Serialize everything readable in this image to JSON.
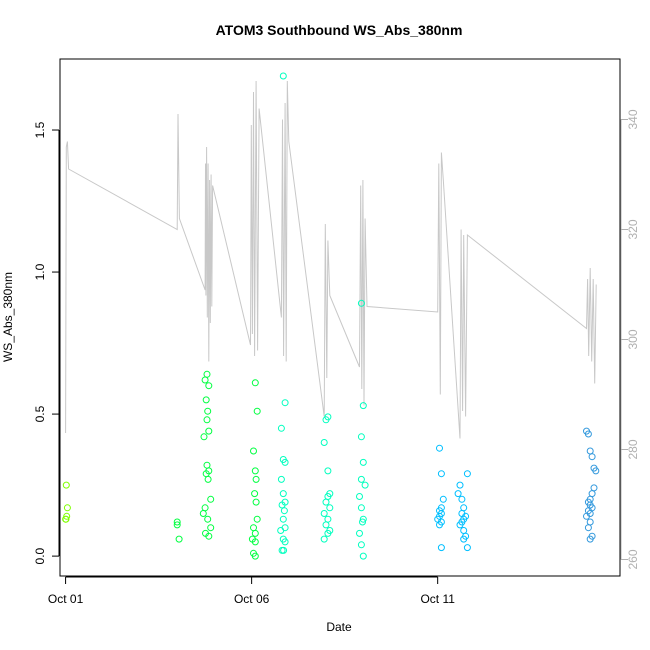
{
  "chart_data": {
    "type": "scatter",
    "title": "ATOM3 Southbound WS_Abs_380nm",
    "xlabel": "Date",
    "ylabel": "WS_Abs_380nm",
    "xlim": [
      -0.15,
      14.9
    ],
    "ylim": [
      -0.07,
      1.75
    ],
    "y2lim": [
      257,
      351
    ],
    "x_ticks": [
      {
        "x": 0,
        "label": "Oct 01"
      },
      {
        "x": 5,
        "label": "Oct 06"
      },
      {
        "x": 10,
        "label": "Oct 11"
      }
    ],
    "y_ticks": [
      {
        "y": 0.0,
        "label": "0.0"
      },
      {
        "y": 0.5,
        "label": "0.5"
      },
      {
        "y": 1.0,
        "label": "1.0"
      },
      {
        "y": 1.5,
        "label": "1.5"
      }
    ],
    "y2_ticks": [
      {
        "y": 260,
        "label": "260"
      },
      {
        "y": 280,
        "label": "280"
      },
      {
        "y": 300,
        "label": "300"
      },
      {
        "y": 320,
        "label": "320"
      },
      {
        "y": 340,
        "label": "340"
      }
    ],
    "point_color_scale": [
      "#7fff00",
      "#00ff40",
      "#00ffbf",
      "#00bfff",
      "#3399dd"
    ],
    "secondary_line_color": "#c8c8c8",
    "points": [
      {
        "x": 0.02,
        "y": 0.25
      },
      {
        "x": 0.05,
        "y": 0.17
      },
      {
        "x": 0.0,
        "y": 0.13
      },
      {
        "x": 0.03,
        "y": 0.14
      },
      {
        "x": 0.01,
        "y": 0.13
      },
      {
        "x": 3.0,
        "y": 0.12
      },
      {
        "x": 3.0,
        "y": 0.11
      },
      {
        "x": 3.05,
        "y": 0.06
      },
      {
        "x": 3.75,
        "y": 0.62
      },
      {
        "x": 3.8,
        "y": 0.64
      },
      {
        "x": 3.85,
        "y": 0.6
      },
      {
        "x": 3.78,
        "y": 0.55
      },
      {
        "x": 3.82,
        "y": 0.51
      },
      {
        "x": 3.8,
        "y": 0.48
      },
      {
        "x": 3.85,
        "y": 0.44
      },
      {
        "x": 3.72,
        "y": 0.42
      },
      {
        "x": 3.8,
        "y": 0.32
      },
      {
        "x": 3.85,
        "y": 0.3
      },
      {
        "x": 3.78,
        "y": 0.29
      },
      {
        "x": 3.83,
        "y": 0.27
      },
      {
        "x": 3.9,
        "y": 0.2
      },
      {
        "x": 3.75,
        "y": 0.17
      },
      {
        "x": 3.7,
        "y": 0.15
      },
      {
        "x": 3.82,
        "y": 0.13
      },
      {
        "x": 3.9,
        "y": 0.1
      },
      {
        "x": 3.85,
        "y": 0.07
      },
      {
        "x": 3.76,
        "y": 0.08
      },
      {
        "x": 5.1,
        "y": 0.61
      },
      {
        "x": 5.15,
        "y": 0.51
      },
      {
        "x": 5.05,
        "y": 0.37
      },
      {
        "x": 5.1,
        "y": 0.3
      },
      {
        "x": 5.12,
        "y": 0.27
      },
      {
        "x": 5.08,
        "y": 0.22
      },
      {
        "x": 5.12,
        "y": 0.19
      },
      {
        "x": 5.15,
        "y": 0.13
      },
      {
        "x": 5.05,
        "y": 0.1
      },
      {
        "x": 5.1,
        "y": 0.08
      },
      {
        "x": 5.02,
        "y": 0.06
      },
      {
        "x": 5.1,
        "y": 0.05
      },
      {
        "x": 5.05,
        "y": 0.01
      },
      {
        "x": 5.1,
        "y": 0.0
      },
      {
        "x": 5.85,
        "y": 1.69
      },
      {
        "x": 5.9,
        "y": 0.54
      },
      {
        "x": 5.8,
        "y": 0.45
      },
      {
        "x": 5.85,
        "y": 0.34
      },
      {
        "x": 5.9,
        "y": 0.33
      },
      {
        "x": 5.8,
        "y": 0.27
      },
      {
        "x": 5.85,
        "y": 0.22
      },
      {
        "x": 5.9,
        "y": 0.19
      },
      {
        "x": 5.82,
        "y": 0.18
      },
      {
        "x": 5.88,
        "y": 0.16
      },
      {
        "x": 5.85,
        "y": 0.13
      },
      {
        "x": 5.9,
        "y": 0.1
      },
      {
        "x": 5.78,
        "y": 0.09
      },
      {
        "x": 5.85,
        "y": 0.06
      },
      {
        "x": 5.9,
        "y": 0.05
      },
      {
        "x": 5.82,
        "y": 0.02
      },
      {
        "x": 5.86,
        "y": 0.02
      },
      {
        "x": 7.05,
        "y": 0.49
      },
      {
        "x": 7.0,
        "y": 0.48
      },
      {
        "x": 6.95,
        "y": 0.4
      },
      {
        "x": 7.05,
        "y": 0.3
      },
      {
        "x": 7.1,
        "y": 0.22
      },
      {
        "x": 7.05,
        "y": 0.21
      },
      {
        "x": 7.0,
        "y": 0.19
      },
      {
        "x": 7.1,
        "y": 0.17
      },
      {
        "x": 6.95,
        "y": 0.15
      },
      {
        "x": 7.05,
        "y": 0.13
      },
      {
        "x": 7.0,
        "y": 0.11
      },
      {
        "x": 7.1,
        "y": 0.09
      },
      {
        "x": 7.05,
        "y": 0.08
      },
      {
        "x": 6.95,
        "y": 0.06
      },
      {
        "x": 7.95,
        "y": 0.89
      },
      {
        "x": 8.0,
        "y": 0.53
      },
      {
        "x": 7.95,
        "y": 0.42
      },
      {
        "x": 8.0,
        "y": 0.33
      },
      {
        "x": 7.95,
        "y": 0.27
      },
      {
        "x": 8.05,
        "y": 0.25
      },
      {
        "x": 7.9,
        "y": 0.21
      },
      {
        "x": 7.95,
        "y": 0.17
      },
      {
        "x": 8.0,
        "y": 0.13
      },
      {
        "x": 7.98,
        "y": 0.12
      },
      {
        "x": 7.9,
        "y": 0.08
      },
      {
        "x": 7.95,
        "y": 0.04
      },
      {
        "x": 8.0,
        "y": 0.0
      },
      {
        "x": 10.05,
        "y": 0.38
      },
      {
        "x": 10.1,
        "y": 0.29
      },
      {
        "x": 10.15,
        "y": 0.2
      },
      {
        "x": 10.1,
        "y": 0.17
      },
      {
        "x": 10.05,
        "y": 0.16
      },
      {
        "x": 10.1,
        "y": 0.15
      },
      {
        "x": 10.05,
        "y": 0.14
      },
      {
        "x": 10.0,
        "y": 0.13
      },
      {
        "x": 10.1,
        "y": 0.12
      },
      {
        "x": 10.05,
        "y": 0.11
      },
      {
        "x": 10.1,
        "y": 0.03
      },
      {
        "x": 10.8,
        "y": 0.29
      },
      {
        "x": 10.6,
        "y": 0.25
      },
      {
        "x": 10.55,
        "y": 0.22
      },
      {
        "x": 10.65,
        "y": 0.2
      },
      {
        "x": 10.7,
        "y": 0.17
      },
      {
        "x": 10.65,
        "y": 0.15
      },
      {
        "x": 10.75,
        "y": 0.14
      },
      {
        "x": 10.7,
        "y": 0.13
      },
      {
        "x": 10.65,
        "y": 0.12
      },
      {
        "x": 10.6,
        "y": 0.11
      },
      {
        "x": 10.7,
        "y": 0.09
      },
      {
        "x": 10.75,
        "y": 0.07
      },
      {
        "x": 10.7,
        "y": 0.06
      },
      {
        "x": 10.8,
        "y": 0.03
      },
      {
        "x": 14.0,
        "y": 0.44
      },
      {
        "x": 14.05,
        "y": 0.43
      },
      {
        "x": 14.1,
        "y": 0.37
      },
      {
        "x": 14.15,
        "y": 0.35
      },
      {
        "x": 14.2,
        "y": 0.31
      },
      {
        "x": 14.25,
        "y": 0.3
      },
      {
        "x": 14.2,
        "y": 0.24
      },
      {
        "x": 14.15,
        "y": 0.22
      },
      {
        "x": 14.1,
        "y": 0.2
      },
      {
        "x": 14.05,
        "y": 0.19
      },
      {
        "x": 14.1,
        "y": 0.18
      },
      {
        "x": 14.15,
        "y": 0.17
      },
      {
        "x": 14.05,
        "y": 0.16
      },
      {
        "x": 14.1,
        "y": 0.15
      },
      {
        "x": 14.0,
        "y": 0.14
      },
      {
        "x": 14.1,
        "y": 0.12
      },
      {
        "x": 14.05,
        "y": 0.1
      },
      {
        "x": 14.15,
        "y": 0.07
      },
      {
        "x": 14.1,
        "y": 0.06
      }
    ],
    "secondary_line": [
      [
        0.0,
        283
      ],
      [
        0.02,
        335
      ],
      [
        0.05,
        336
      ],
      [
        0.08,
        331
      ],
      [
        3.0,
        320
      ],
      [
        3.02,
        341
      ],
      [
        3.06,
        322
      ],
      [
        3.75,
        309
      ],
      [
        3.76,
        332
      ],
      [
        3.77,
        308
      ],
      [
        3.79,
        335
      ],
      [
        3.81,
        304
      ],
      [
        3.83,
        332
      ],
      [
        3.85,
        296
      ],
      [
        3.87,
        329
      ],
      [
        3.89,
        303
      ],
      [
        3.91,
        330
      ],
      [
        3.93,
        306
      ],
      [
        3.95,
        328
      ],
      [
        4.97,
        299
      ],
      [
        4.99,
        339
      ],
      [
        5.02,
        301
      ],
      [
        5.05,
        345
      ],
      [
        5.08,
        297
      ],
      [
        5.12,
        347
      ],
      [
        5.16,
        298
      ],
      [
        5.2,
        342
      ],
      [
        5.8,
        304
      ],
      [
        5.83,
        340
      ],
      [
        5.86,
        297
      ],
      [
        5.9,
        343
      ],
      [
        5.93,
        296
      ],
      [
        5.96,
        347
      ],
      [
        6.0,
        336
      ],
      [
        6.95,
        286
      ],
      [
        6.98,
        321
      ],
      [
        7.02,
        293
      ],
      [
        7.05,
        318
      ],
      [
        7.1,
        308
      ],
      [
        7.9,
        295
      ],
      [
        7.93,
        328
      ],
      [
        7.96,
        291
      ],
      [
        7.99,
        329
      ],
      [
        8.02,
        288
      ],
      [
        8.05,
        322
      ],
      [
        8.1,
        306
      ],
      [
        10.0,
        305
      ],
      [
        10.03,
        332
      ],
      [
        10.07,
        290
      ],
      [
        10.1,
        334
      ],
      [
        10.15,
        329
      ],
      [
        10.6,
        282
      ],
      [
        10.63,
        320
      ],
      [
        10.67,
        287
      ],
      [
        10.7,
        319
      ],
      [
        10.75,
        286
      ],
      [
        10.8,
        319
      ],
      [
        14.0,
        302
      ],
      [
        14.03,
        311
      ],
      [
        14.06,
        297
      ],
      [
        14.1,
        313
      ],
      [
        14.14,
        296
      ],
      [
        14.18,
        311
      ],
      [
        14.22,
        292
      ],
      [
        14.26,
        310
      ]
    ]
  }
}
